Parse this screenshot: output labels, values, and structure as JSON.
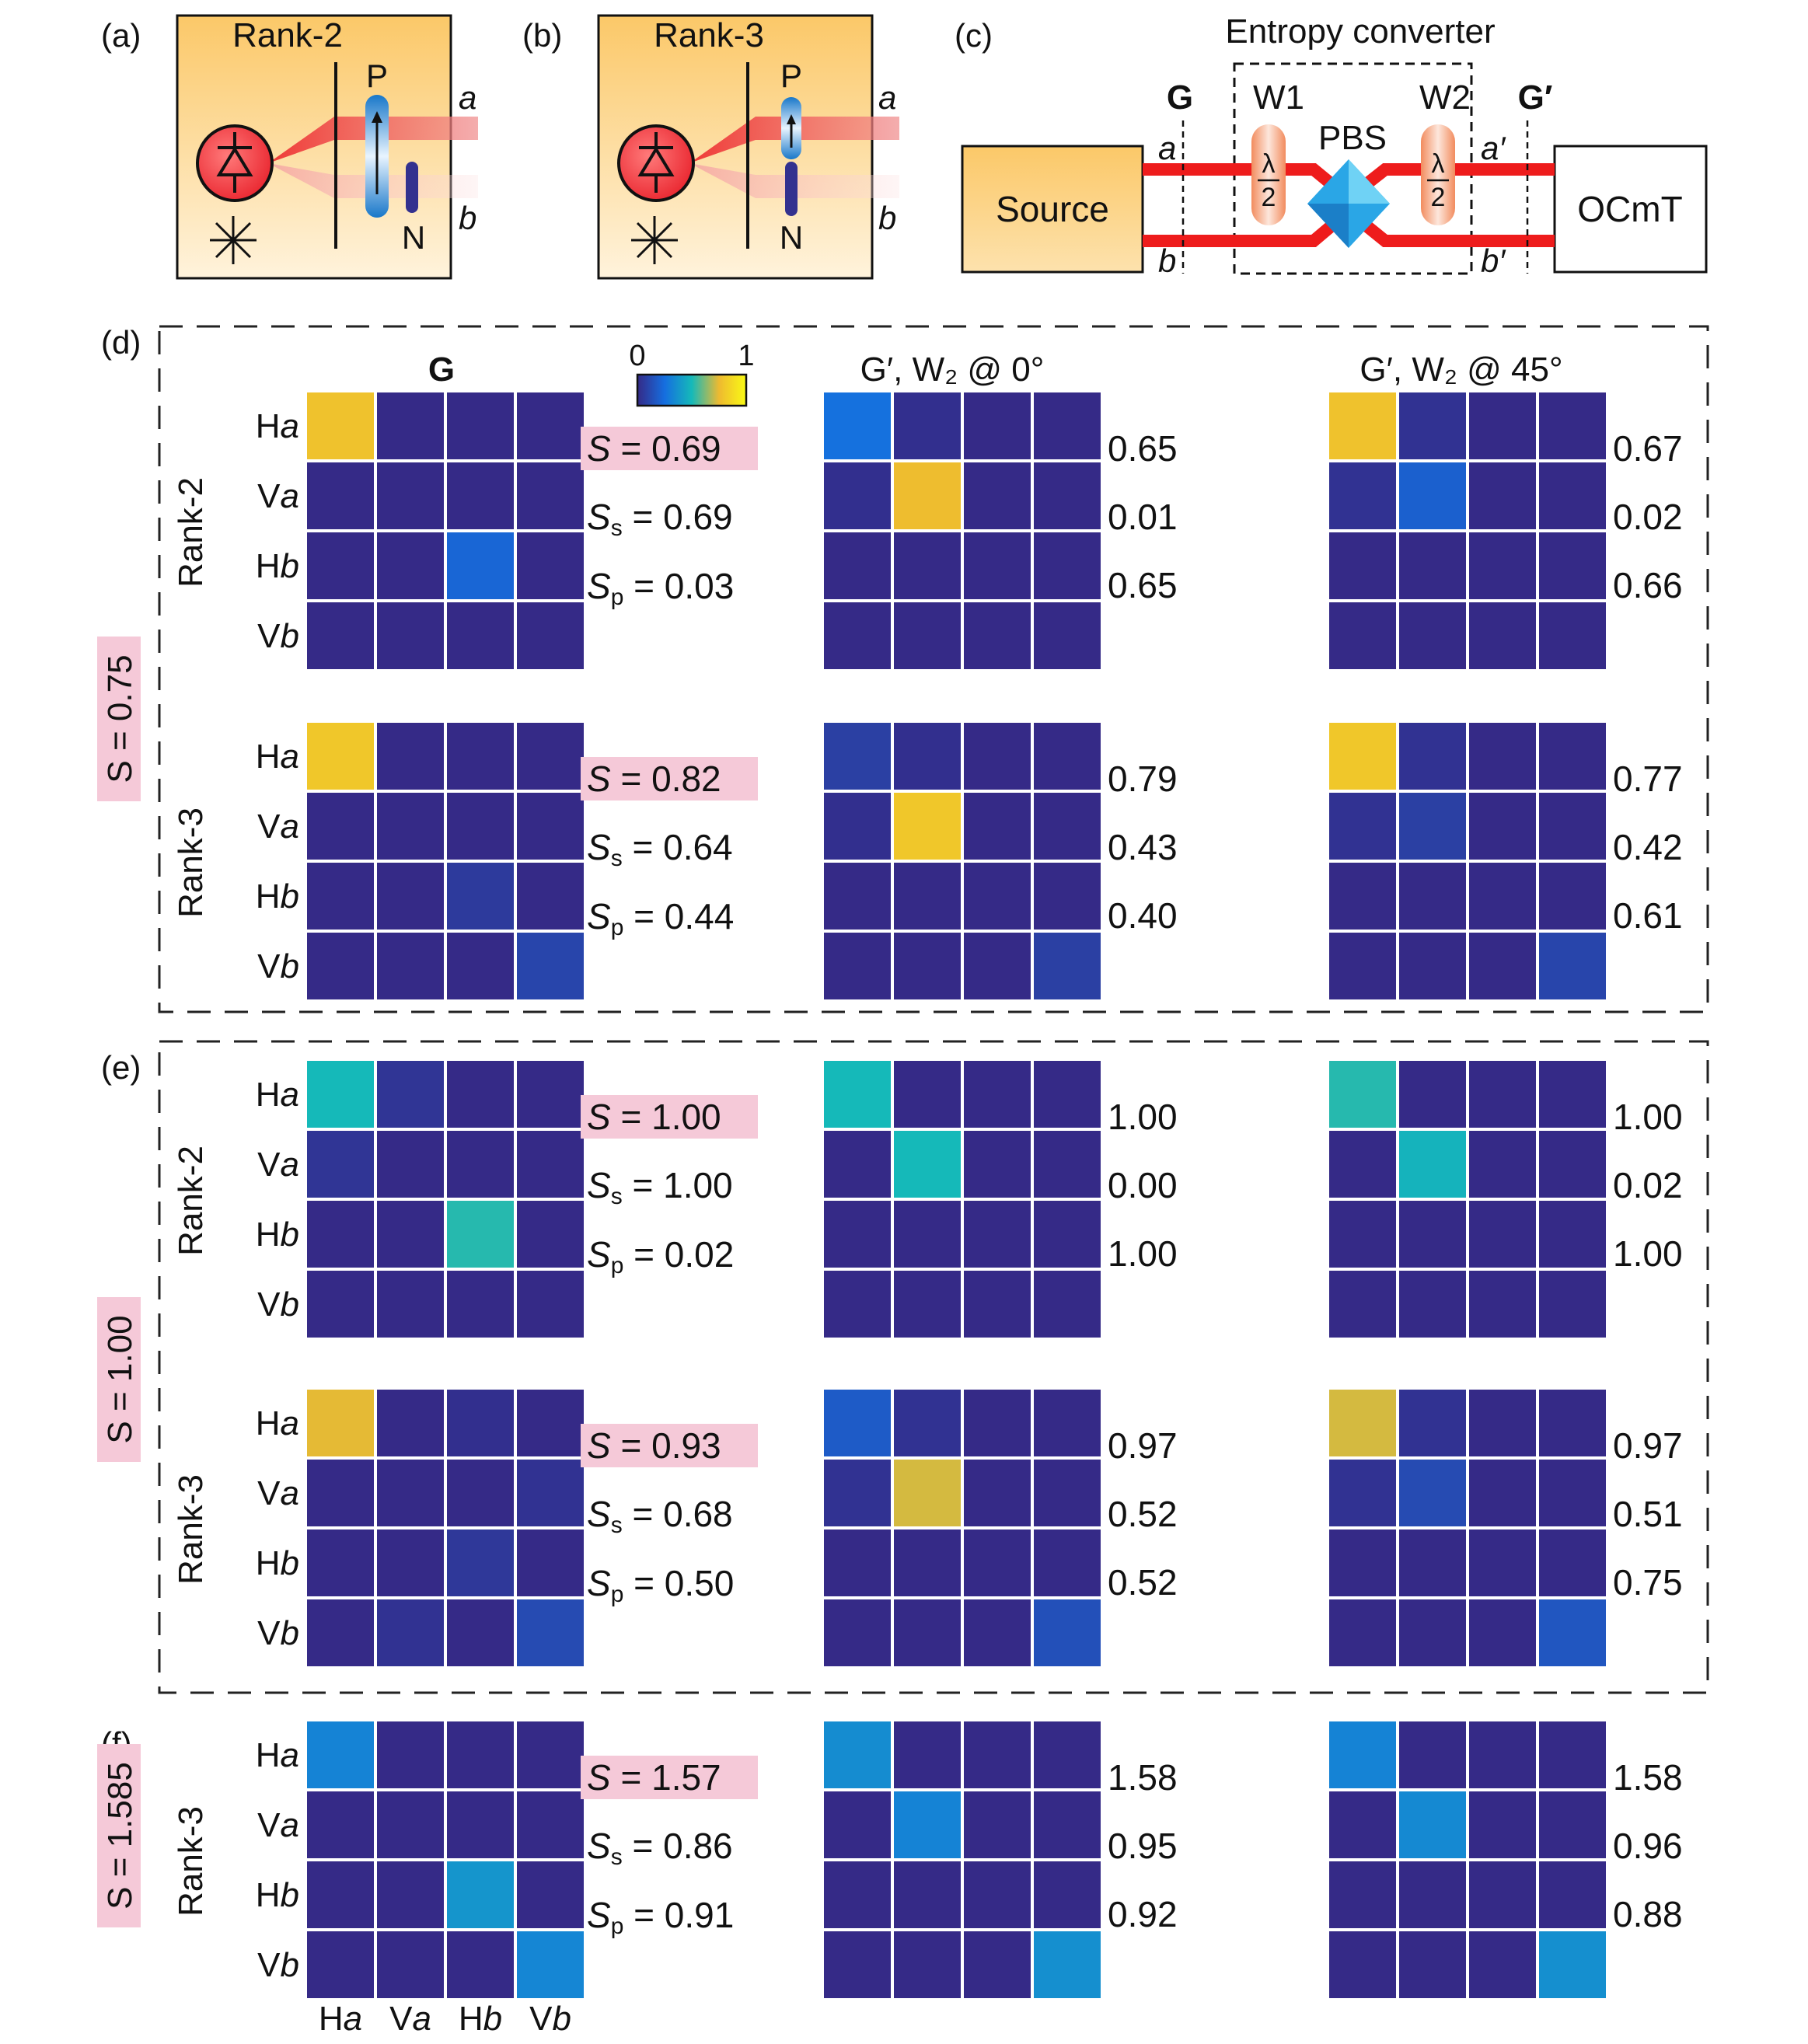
{
  "colors": {
    "dark": "#352a87",
    "highlight_pink": "#f5c9d8",
    "beam_red": "#ee1c1c",
    "panel_top": "#fbc868",
    "panel_bottom": "#fff2d8",
    "pbs_blue": "#2aa6e6"
  },
  "panels": {
    "a": {
      "tag": "(a)",
      "title": "Rank-2",
      "p_label": "P",
      "n_label": "N",
      "port_a": "a",
      "port_b": "b"
    },
    "b": {
      "tag": "(b)",
      "title": "Rank-3",
      "p_label": "P",
      "n_label": "N",
      "port_a": "a",
      "port_b": "b"
    },
    "c": {
      "tag": "(c)",
      "title": "Entropy converter",
      "source": "Source",
      "ocmt": "OCmT",
      "pbs": "PBS",
      "g": "G",
      "g_prime": "G′",
      "w1": "W1",
      "w2": "W2",
      "half_num": "λ",
      "half_den": "2",
      "port_a": "a",
      "port_b": "b",
      "port_a_prime": "a′",
      "port_b_prime": "b′"
    }
  },
  "headers": {
    "g": "G",
    "g_prime_0": "G′, W₂ @ 0°",
    "g_prime_45": "G′, W₂ @ 45°"
  },
  "colorbar": {
    "min": "0",
    "max": "1"
  },
  "axis_labels": [
    "Ha",
    "Va",
    "Hb",
    "Vb"
  ],
  "sections": [
    {
      "tag": "(d)",
      "side_label": "S = 0.75",
      "rows": [
        {
          "rank": "Rank-2",
          "S": "S = 0.69",
          "Ss": "Ss = 0.69",
          "Sp": "Sp = 0.03",
          "g": [
            [
              0.78,
              0,
              0,
              0
            ],
            [
              0,
              0,
              0,
              0
            ],
            [
              0,
              0,
              0.22,
              0
            ],
            [
              0,
              0,
              0,
              0
            ]
          ],
          "g0": [
            [
              0.26,
              0.02,
              0,
              0
            ],
            [
              0.02,
              0.76,
              0,
              0
            ],
            [
              0,
              0,
              0,
              0
            ],
            [
              0,
              0,
              0,
              0
            ]
          ],
          "vals0": [
            "0.65",
            "0.01",
            "0.65"
          ],
          "g45": [
            [
              0.78,
              0.03,
              0,
              0
            ],
            [
              0.03,
              0.2,
              0,
              0
            ],
            [
              0,
              0,
              0,
              0
            ],
            [
              0,
              0,
              0,
              0
            ]
          ],
          "vals45": [
            "0.67",
            "0.02",
            "0.66"
          ]
        },
        {
          "rank": "Rank-3",
          "S": "S = 0.82",
          "Ss": "Ss = 0.64",
          "Sp": "Sp = 0.44",
          "g": [
            [
              0.8,
              0,
              0,
              0
            ],
            [
              0,
              0,
              0,
              0
            ],
            [
              0,
              0,
              0.06,
              0
            ],
            [
              0,
              0,
              0,
              0.1
            ]
          ],
          "g0": [
            [
              0.08,
              0.02,
              0,
              0
            ],
            [
              0.02,
              0.8,
              0,
              0
            ],
            [
              0,
              0,
              0,
              0
            ],
            [
              0,
              0,
              0,
              0.08
            ]
          ],
          "vals0": [
            "0.79",
            "0.43",
            "0.40"
          ],
          "g45": [
            [
              0.8,
              0.03,
              0,
              0
            ],
            [
              0.03,
              0.08,
              0,
              0
            ],
            [
              0,
              0,
              0,
              0
            ],
            [
              0,
              0,
              0,
              0.1
            ]
          ],
          "vals45": [
            "0.77",
            "0.42",
            "0.61"
          ]
        }
      ]
    },
    {
      "tag": "(e)",
      "side_label": "S = 1.00",
      "rows": [
        {
          "rank": "Rank-2",
          "S": "S = 1.00",
          "Ss": "Ss = 1.00",
          "Sp": "Sp = 0.02",
          "g": [
            [
              0.5,
              0.04,
              0,
              0
            ],
            [
              0.04,
              0,
              0,
              0
            ],
            [
              0,
              0,
              0.52,
              0
            ],
            [
              0,
              0,
              0,
              0
            ]
          ],
          "g0": [
            [
              0.5,
              0,
              0,
              0
            ],
            [
              0,
              0.5,
              0,
              0
            ],
            [
              0,
              0,
              0,
              0
            ],
            [
              0,
              0,
              0,
              0
            ]
          ],
          "vals0": [
            "1.00",
            "0.00",
            "1.00"
          ],
          "g45": [
            [
              0.52,
              0,
              0,
              0
            ],
            [
              0,
              0.48,
              0,
              0
            ],
            [
              0,
              0,
              0,
              0
            ],
            [
              0,
              0,
              0,
              0
            ]
          ],
          "vals45": [
            "1.00",
            "0.02",
            "1.00"
          ]
        },
        {
          "rank": "Rank-3",
          "S": "S = 0.93",
          "Ss": "Ss = 0.68",
          "Sp": "Sp = 0.50",
          "g": [
            [
              0.74,
              0,
              0.02,
              0
            ],
            [
              0,
              0,
              0,
              0.03
            ],
            [
              0,
              0,
              0.05,
              0
            ],
            [
              0,
              0.03,
              0,
              0.12
            ]
          ],
          "g0": [
            [
              0.18,
              0.03,
              0,
              0
            ],
            [
              0.03,
              0.72,
              0,
              0
            ],
            [
              0,
              0,
              0,
              0
            ],
            [
              0,
              0,
              0,
              0.14
            ]
          ],
          "vals0": [
            "0.97",
            "0.52",
            "0.52"
          ],
          "g45": [
            [
              0.72,
              0.03,
              0,
              0
            ],
            [
              0.03,
              0.12,
              0,
              0
            ],
            [
              0,
              0,
              0,
              0
            ],
            [
              0,
              0,
              0,
              0.16
            ]
          ],
          "vals45": [
            "0.97",
            "0.51",
            "0.75"
          ]
        }
      ]
    },
    {
      "tag": "(f)",
      "side_label": "S = 1.585",
      "rows": [
        {
          "rank": "Rank-3",
          "S": "S = 1.57",
          "Ss": "Ss = 0.86",
          "Sp": "Sp = 0.91",
          "g": [
            [
              0.32,
              0,
              0,
              0
            ],
            [
              0,
              0,
              0,
              0
            ],
            [
              0,
              0,
              0.38,
              0
            ],
            [
              0,
              0,
              0,
              0.33
            ]
          ],
          "g0": [
            [
              0.35,
              0,
              0,
              0
            ],
            [
              0,
              0.32,
              0,
              0
            ],
            [
              0,
              0,
              0,
              0
            ],
            [
              0,
              0,
              0,
              0.36
            ]
          ],
          "vals0": [
            "1.58",
            "0.95",
            "0.92"
          ],
          "g45": [
            [
              0.32,
              0,
              0,
              0
            ],
            [
              0,
              0.34,
              0,
              0
            ],
            [
              0,
              0,
              0,
              0
            ],
            [
              0,
              0,
              0,
              0.36
            ]
          ],
          "vals45": [
            "1.58",
            "0.96",
            "0.88"
          ]
        }
      ]
    }
  ]
}
